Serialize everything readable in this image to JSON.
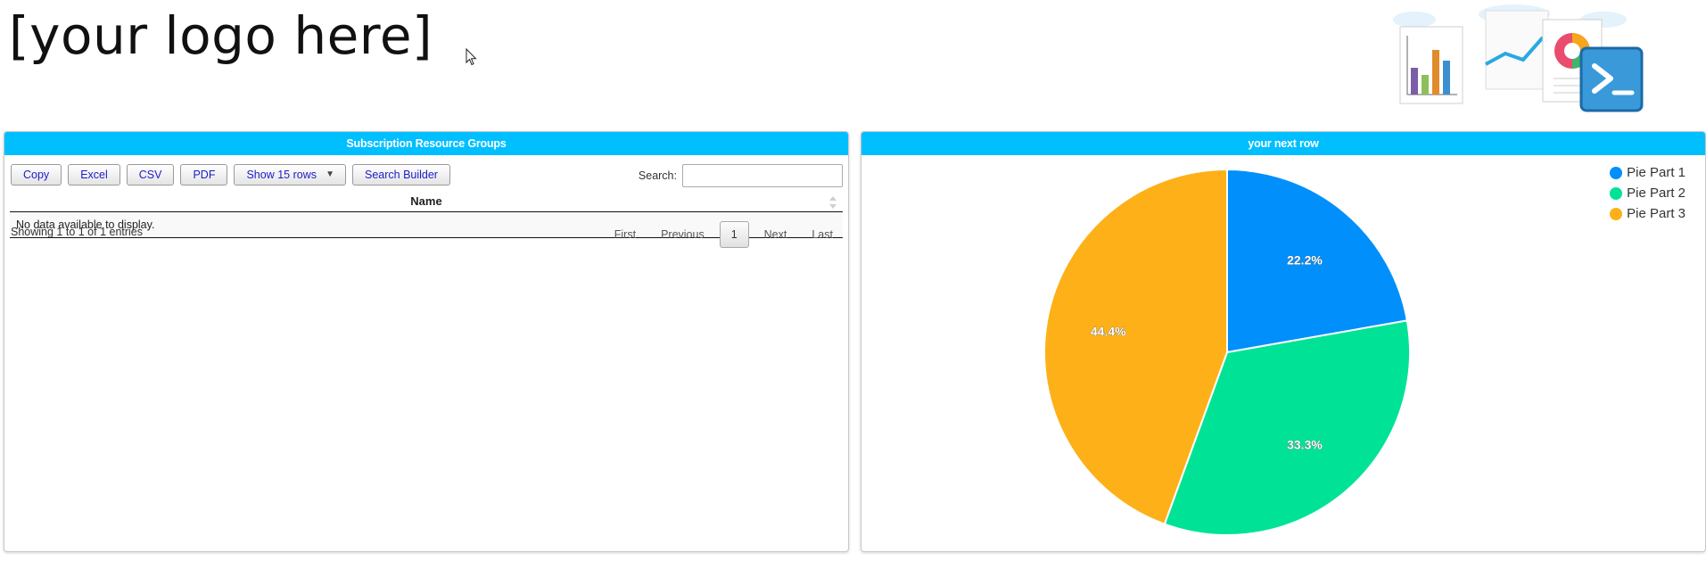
{
  "header": {
    "logo_text": "[your logo here]",
    "brand_icons": [
      "bar-chart-icon",
      "line-chart-icon",
      "donut-chart-icon",
      "powershell-icon",
      "cloud-icon"
    ]
  },
  "left_panel": {
    "title": "Subscription Resource Groups",
    "toolbar": {
      "copy": "Copy",
      "excel": "Excel",
      "csv": "CSV",
      "pdf": "PDF",
      "rows": "Show 15 rows",
      "search_builder": "Search Builder"
    },
    "search": {
      "label": "Search:",
      "value": "",
      "placeholder": ""
    },
    "table": {
      "columns": [
        "Name"
      ],
      "empty_message": "No data available to display."
    },
    "info": "Showing 1 to 1 of 1 entries",
    "pagination": {
      "first": "First",
      "previous": "Previous",
      "current": "1",
      "next": "Next",
      "last": "Last"
    }
  },
  "right_panel": {
    "title": "your next row"
  },
  "colors": {
    "header_bg": "#00bfff",
    "button_text": "#1c1cc8",
    "pie_1": "#008ffb",
    "pie_2": "#00e396",
    "pie_3": "#feb019"
  },
  "chart_data": {
    "type": "pie",
    "categories": [
      "Pie Part 1",
      "Pie Part 2",
      "Pie Part 3"
    ],
    "values": [
      22.2,
      33.3,
      44.4
    ],
    "labels": [
      "22.2%",
      "33.3%",
      "44.4%"
    ],
    "colors": [
      "#008ffb",
      "#00e396",
      "#feb019"
    ],
    "legend_position": "top-right"
  }
}
